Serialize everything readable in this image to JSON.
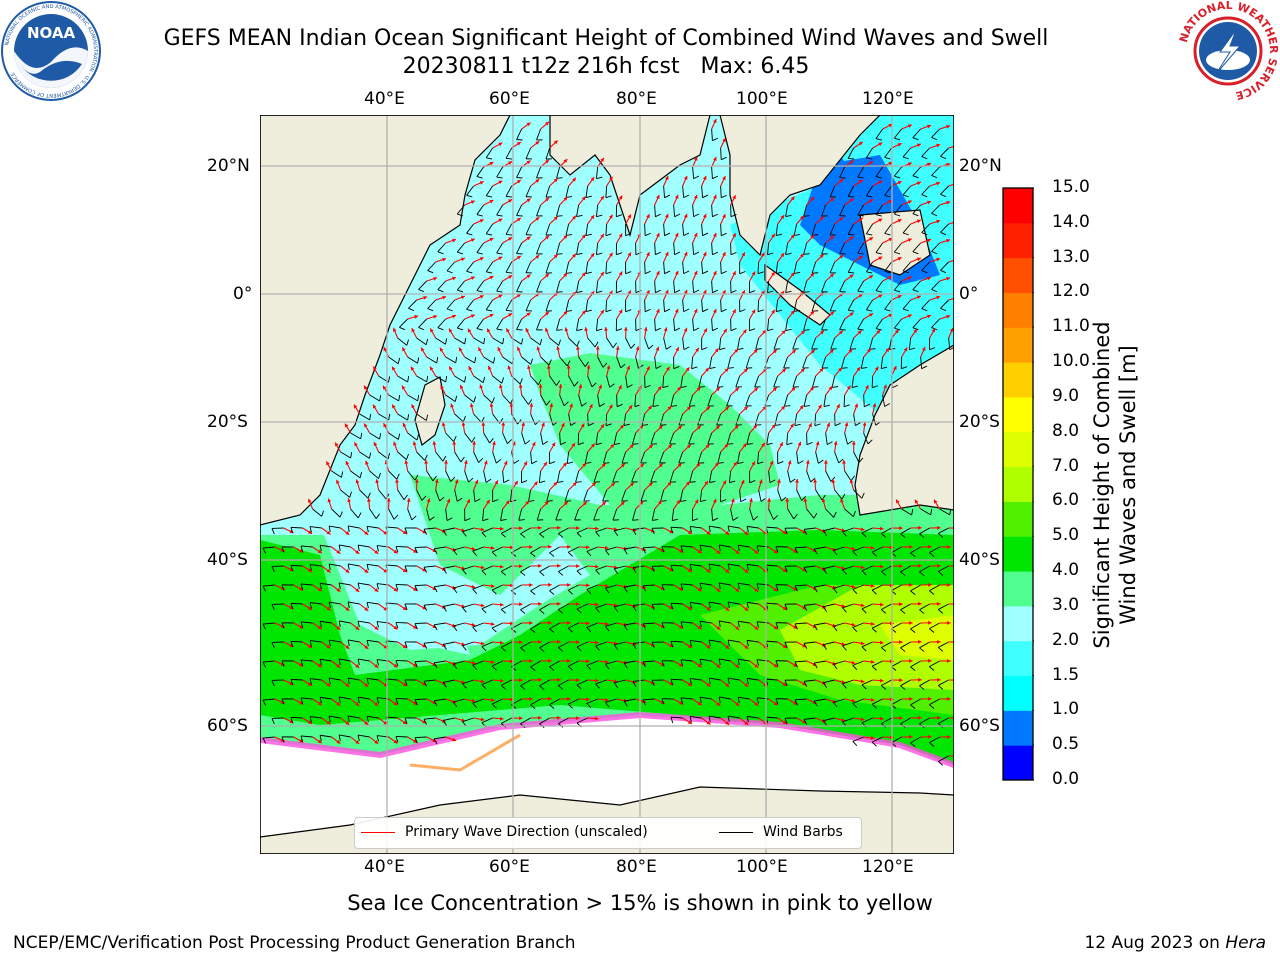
{
  "title_line1": "GEFS MEAN Indian Ocean Significant Height of Combined Wind Waves and Swell",
  "title_line2": "20230811 t12z 216h fcst   Max: 6.45",
  "map": {
    "lon_ticks": [
      "40°E",
      "60°E",
      "80°E",
      "100°E",
      "120°E"
    ],
    "lat_ticks": [
      "20°N",
      "0°",
      "20°S",
      "40°S",
      "60°S"
    ],
    "land_color": "#efeedc",
    "ice_color": "#ffffff",
    "grid_color": "#b0b0b0"
  },
  "colorbar": {
    "label_line1": "Significant Height of Combined",
    "label_line2": "Wind Waves and Swell [m]",
    "ticks": [
      "0.0",
      "0.5",
      "1.0",
      "1.5",
      "2.0",
      "3.0",
      "4.0",
      "5.0",
      "6.0",
      "7.0",
      "8.0",
      "9.0",
      "10.0",
      "11.0",
      "12.0",
      "13.0",
      "14.0",
      "15.0"
    ],
    "colors": [
      "#0000ff",
      "#0078ff",
      "#00ffff",
      "#40ffff",
      "#a0ffff",
      "#50ff90",
      "#00e600",
      "#50f000",
      "#b0ff00",
      "#ddff00",
      "#ffff00",
      "#ffd000",
      "#ffa000",
      "#ff8000",
      "#ff5000",
      "#ff2000",
      "#ff0000"
    ]
  },
  "legend": {
    "wave_label": "Primary Wave Direction (unscaled)",
    "wave_color": "#ff0000",
    "wind_label": "Wind Barbs",
    "wind_color": "#000000"
  },
  "subtitle": "Sea Ice Concentration > 15% is shown in pink to yellow",
  "footer_left": "NCEP/EMC/Verification Post Processing Product Generation Branch",
  "footer_right_date": "12 Aug 2023 on ",
  "footer_right_host": "Hera",
  "logos": {
    "left": {
      "name": "noaa-logo",
      "text": "NOAA",
      "ring_text": "NATIONAL OCEANIC AND ATMOSPHERIC ADMINISTRATION · U.S. DEPARTMENT OF COMMERCE"
    },
    "right": {
      "name": "nws-logo",
      "ring_text": "NATIONAL WEATHER SERVICE"
    }
  }
}
